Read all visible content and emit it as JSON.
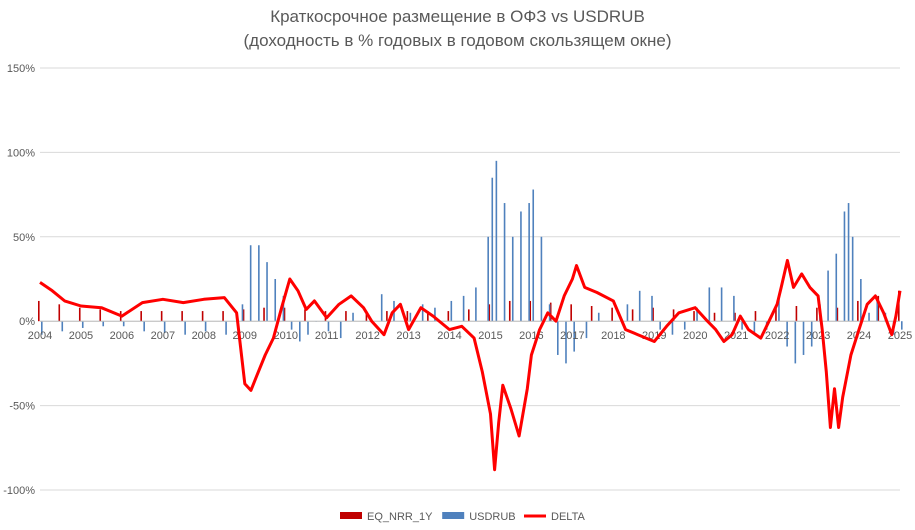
{
  "chart_data": {
    "type": "bar",
    "title": "Краткосрочное размещение в ОФЗ vs USDRUB",
    "subtitle": "(доходность в % годовых в годовом скользящем окне)",
    "xlabel": "",
    "ylabel": "",
    "ylim": [
      -100,
      150
    ],
    "y_ticks": [
      "150%",
      "100%",
      "50%",
      "0%",
      "-50%",
      "-100%"
    ],
    "y_tick_values": [
      150,
      100,
      50,
      0,
      -50,
      -100
    ],
    "x_ticks": [
      "2004",
      "2005",
      "2006",
      "2007",
      "2008",
      "2009",
      "2010",
      "2011",
      "2012",
      "2013",
      "2014",
      "2015",
      "2016",
      "2017",
      "2018",
      "2019",
      "2020",
      "2021",
      "2022",
      "2023",
      "2024",
      "2025"
    ],
    "x_range": [
      2004.0,
      2025.0
    ],
    "grid": true,
    "legend_position": "bottom",
    "series": [
      {
        "name": "EQ_NRR_1Y",
        "kind": "bar",
        "color": "#c00000",
        "points": [
          [
            2004.0,
            12
          ],
          [
            2004.5,
            10
          ],
          [
            2005.0,
            8
          ],
          [
            2005.5,
            7
          ],
          [
            2006.0,
            6
          ],
          [
            2006.5,
            6
          ],
          [
            2007.0,
            6
          ],
          [
            2007.5,
            6
          ],
          [
            2008.0,
            6
          ],
          [
            2008.5,
            6
          ],
          [
            2009.0,
            7
          ],
          [
            2009.5,
            8
          ],
          [
            2010.0,
            8
          ],
          [
            2010.5,
            7
          ],
          [
            2011.0,
            6
          ],
          [
            2011.5,
            6
          ],
          [
            2012.0,
            6
          ],
          [
            2012.5,
            6
          ],
          [
            2013.0,
            6
          ],
          [
            2013.5,
            6
          ],
          [
            2014.0,
            6
          ],
          [
            2014.5,
            7
          ],
          [
            2015.0,
            10
          ],
          [
            2015.5,
            12
          ],
          [
            2016.0,
            12
          ],
          [
            2016.5,
            11
          ],
          [
            2017.0,
            10
          ],
          [
            2017.5,
            9
          ],
          [
            2018.0,
            8
          ],
          [
            2018.5,
            7
          ],
          [
            2019.0,
            8
          ],
          [
            2019.5,
            7
          ],
          [
            2020.0,
            6
          ],
          [
            2020.5,
            5
          ],
          [
            2021.0,
            5
          ],
          [
            2021.5,
            6
          ],
          [
            2022.0,
            8
          ],
          [
            2022.5,
            9
          ],
          [
            2023.0,
            8
          ],
          [
            2023.5,
            8
          ],
          [
            2024.0,
            12
          ],
          [
            2024.5,
            15
          ],
          [
            2025.0,
            18
          ]
        ]
      },
      {
        "name": "USDRUB",
        "kind": "bar",
        "color": "#4f81bd",
        "points": [
          [
            2004.0,
            -8
          ],
          [
            2004.5,
            -6
          ],
          [
            2005.0,
            -4
          ],
          [
            2005.5,
            -3
          ],
          [
            2006.0,
            -3
          ],
          [
            2006.5,
            -6
          ],
          [
            2007.0,
            -7
          ],
          [
            2007.5,
            -8
          ],
          [
            2008.0,
            -6
          ],
          [
            2008.5,
            -8
          ],
          [
            2008.9,
            10
          ],
          [
            2009.1,
            45
          ],
          [
            2009.3,
            45
          ],
          [
            2009.5,
            35
          ],
          [
            2009.7,
            25
          ],
          [
            2009.9,
            15
          ],
          [
            2010.1,
            -5
          ],
          [
            2010.3,
            -12
          ],
          [
            2010.5,
            -8
          ],
          [
            2010.7,
            0
          ],
          [
            2011.0,
            -6
          ],
          [
            2011.3,
            -10
          ],
          [
            2011.6,
            5
          ],
          [
            2012.0,
            0
          ],
          [
            2012.3,
            16
          ],
          [
            2012.6,
            12
          ],
          [
            2013.0,
            5
          ],
          [
            2013.3,
            10
          ],
          [
            2013.6,
            8
          ],
          [
            2014.0,
            12
          ],
          [
            2014.3,
            15
          ],
          [
            2014.6,
            20
          ],
          [
            2014.9,
            50
          ],
          [
            2015.0,
            85
          ],
          [
            2015.1,
            95
          ],
          [
            2015.3,
            70
          ],
          [
            2015.5,
            50
          ],
          [
            2015.7,
            65
          ],
          [
            2015.9,
            70
          ],
          [
            2016.0,
            78
          ],
          [
            2016.2,
            50
          ],
          [
            2016.4,
            10
          ],
          [
            2016.6,
            -20
          ],
          [
            2016.8,
            -25
          ],
          [
            2017.0,
            -18
          ],
          [
            2017.3,
            -10
          ],
          [
            2017.6,
            5
          ],
          [
            2018.0,
            0
          ],
          [
            2018.3,
            10
          ],
          [
            2018.6,
            18
          ],
          [
            2018.9,
            15
          ],
          [
            2019.1,
            -5
          ],
          [
            2019.4,
            -8
          ],
          [
            2019.7,
            -5
          ],
          [
            2020.0,
            8
          ],
          [
            2020.3,
            20
          ],
          [
            2020.6,
            20
          ],
          [
            2020.9,
            15
          ],
          [
            2021.1,
            -5
          ],
          [
            2021.4,
            -8
          ],
          [
            2021.7,
            -5
          ],
          [
            2022.0,
            15
          ],
          [
            2022.2,
            -15
          ],
          [
            2022.4,
            -25
          ],
          [
            2022.6,
            -20
          ],
          [
            2022.8,
            -15
          ],
          [
            2023.0,
            10
          ],
          [
            2023.2,
            30
          ],
          [
            2023.4,
            40
          ],
          [
            2023.6,
            65
          ],
          [
            2023.7,
            70
          ],
          [
            2023.8,
            50
          ],
          [
            2024.0,
            25
          ],
          [
            2024.2,
            5
          ],
          [
            2024.4,
            12
          ],
          [
            2024.6,
            5
          ],
          [
            2024.8,
            -8
          ],
          [
            2025.0,
            -5
          ]
        ]
      },
      {
        "name": "DELTA",
        "kind": "line",
        "color": "#ff0000",
        "points": [
          [
            2004.0,
            23
          ],
          [
            2004.3,
            18
          ],
          [
            2004.6,
            12
          ],
          [
            2005.0,
            9
          ],
          [
            2005.5,
            8
          ],
          [
            2006.0,
            3
          ],
          [
            2006.5,
            11
          ],
          [
            2007.0,
            13
          ],
          [
            2007.5,
            11
          ],
          [
            2008.0,
            13
          ],
          [
            2008.5,
            14
          ],
          [
            2008.8,
            5
          ],
          [
            2009.0,
            -37
          ],
          [
            2009.15,
            -41
          ],
          [
            2009.3,
            -32
          ],
          [
            2009.5,
            -20
          ],
          [
            2009.7,
            -10
          ],
          [
            2009.9,
            8
          ],
          [
            2010.1,
            25
          ],
          [
            2010.3,
            18
          ],
          [
            2010.5,
            7
          ],
          [
            2010.7,
            12
          ],
          [
            2011.0,
            2
          ],
          [
            2011.3,
            10
          ],
          [
            2011.6,
            15
          ],
          [
            2011.9,
            8
          ],
          [
            2012.1,
            0
          ],
          [
            2012.4,
            -8
          ],
          [
            2012.6,
            5
          ],
          [
            2012.8,
            10
          ],
          [
            2013.0,
            -5
          ],
          [
            2013.3,
            8
          ],
          [
            2013.6,
            3
          ],
          [
            2014.0,
            -5
          ],
          [
            2014.3,
            -3
          ],
          [
            2014.6,
            -10
          ],
          [
            2014.8,
            -30
          ],
          [
            2015.0,
            -55
          ],
          [
            2015.1,
            -88
          ],
          [
            2015.2,
            -60
          ],
          [
            2015.3,
            -38
          ],
          [
            2015.5,
            -52
          ],
          [
            2015.7,
            -68
          ],
          [
            2015.9,
            -40
          ],
          [
            2016.0,
            -20
          ],
          [
            2016.2,
            -5
          ],
          [
            2016.4,
            5
          ],
          [
            2016.6,
            0
          ],
          [
            2016.8,
            15
          ],
          [
            2017.0,
            25
          ],
          [
            2017.1,
            33
          ],
          [
            2017.3,
            20
          ],
          [
            2017.6,
            17
          ],
          [
            2018.0,
            12
          ],
          [
            2018.3,
            -5
          ],
          [
            2018.6,
            -8
          ],
          [
            2019.0,
            -12
          ],
          [
            2019.3,
            -3
          ],
          [
            2019.6,
            5
          ],
          [
            2020.0,
            8
          ],
          [
            2020.3,
            0
          ],
          [
            2020.5,
            -5
          ],
          [
            2020.7,
            -12
          ],
          [
            2020.9,
            -8
          ],
          [
            2021.1,
            3
          ],
          [
            2021.3,
            -5
          ],
          [
            2021.6,
            -10
          ],
          [
            2021.8,
            0
          ],
          [
            2022.0,
            10
          ],
          [
            2022.1,
            20
          ],
          [
            2022.25,
            36
          ],
          [
            2022.4,
            20
          ],
          [
            2022.6,
            28
          ],
          [
            2022.8,
            20
          ],
          [
            2023.0,
            15
          ],
          [
            2023.1,
            -5
          ],
          [
            2023.2,
            -30
          ],
          [
            2023.3,
            -63
          ],
          [
            2023.4,
            -40
          ],
          [
            2023.5,
            -63
          ],
          [
            2023.6,
            -45
          ],
          [
            2023.8,
            -20
          ],
          [
            2024.0,
            -5
          ],
          [
            2024.2,
            10
          ],
          [
            2024.4,
            15
          ],
          [
            2024.6,
            5
          ],
          [
            2024.8,
            -8
          ],
          [
            2024.9,
            3
          ],
          [
            2025.0,
            18
          ]
        ]
      }
    ]
  }
}
